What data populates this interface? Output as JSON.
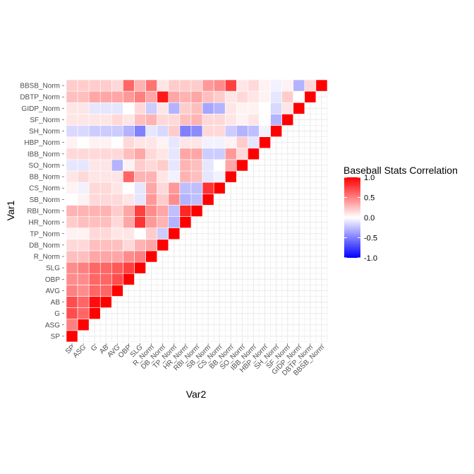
{
  "chart_data": {
    "type": "heatmap",
    "title": "",
    "xlabel": "Var2",
    "ylabel": "Var1",
    "legend_title": "Baseball Stats Correlation",
    "legend_placement": "right",
    "color_scale": {
      "low": "#0000ff",
      "mid": "#ffffff",
      "high": "#ff0000",
      "limits": [
        -1,
        1
      ],
      "breaks": [
        "-1.0",
        "-0.5",
        "0.0",
        "0.5",
        "1.0"
      ]
    },
    "grid": true,
    "lower_triangle_shown": true,
    "variables": [
      "SP",
      "ASG",
      "G",
      "AB",
      "AVG",
      "OBP",
      "SLG",
      "R_Norm",
      "DB_Norm",
      "TP_Norm",
      "HR_Norm",
      "RBI_Norm",
      "SB_Norm",
      "CS_Norm",
      "BB_Norm",
      "SO_Norm",
      "IBB_Norm",
      "HBP_Norm",
      "SH_Norm",
      "SF_Norm",
      "GIDP_Norm",
      "DBTP_Norm",
      "BBSB_Norm"
    ],
    "matrix": [
      [
        1.0
      ],
      [
        0.5,
        1.0
      ],
      [
        0.7,
        0.6,
        1.0
      ],
      [
        0.7,
        0.6,
        0.95,
        1.0
      ],
      [
        0.5,
        0.45,
        0.6,
        0.6,
        1.0
      ],
      [
        0.45,
        0.45,
        0.6,
        0.6,
        0.7,
        1.0
      ],
      [
        0.45,
        0.5,
        0.6,
        0.6,
        0.65,
        0.75,
        1.0
      ],
      [
        0.25,
        0.25,
        0.35,
        0.35,
        0.35,
        0.45,
        0.5,
        1.0
      ],
      [
        0.15,
        0.15,
        0.25,
        0.25,
        0.25,
        0.15,
        0.3,
        0.35,
        1.0
      ],
      [
        0.05,
        0.05,
        0.15,
        0.15,
        0.1,
        0.1,
        0.0,
        0.2,
        -0.2,
        1.0
      ],
      [
        0.2,
        0.25,
        0.25,
        0.25,
        0.15,
        0.35,
        0.8,
        0.4,
        0.3,
        -0.3,
        1.0
      ],
      [
        0.3,
        0.3,
        0.3,
        0.3,
        0.2,
        0.35,
        0.75,
        0.45,
        0.35,
        -0.25,
        0.85,
        1.0
      ],
      [
        0.0,
        0.05,
        0.15,
        0.15,
        0.15,
        0.1,
        -0.1,
        0.4,
        0.2,
        0.45,
        -0.3,
        -0.25,
        1.0
      ],
      [
        0.05,
        -0.05,
        0.15,
        0.15,
        0.1,
        0.0,
        -0.1,
        0.35,
        0.15,
        0.4,
        -0.25,
        -0.25,
        0.8,
        1.0
      ],
      [
        0.1,
        0.15,
        0.1,
        0.1,
        0.1,
        0.6,
        0.3,
        0.3,
        0.1,
        -0.05,
        0.3,
        0.25,
        -0.1,
        -0.05,
        1.0
      ],
      [
        -0.1,
        -0.1,
        0.1,
        0.1,
        -0.3,
        0.05,
        0.2,
        0.15,
        0.2,
        -0.1,
        0.3,
        0.25,
        -0.1,
        0.0,
        0.35,
        1.0
      ],
      [
        0.15,
        0.15,
        0.15,
        0.15,
        0.15,
        0.25,
        0.35,
        0.15,
        0.1,
        -0.1,
        0.35,
        0.35,
        -0.2,
        -0.2,
        0.4,
        0.15,
        1.0
      ],
      [
        0.05,
        0.0,
        0.05,
        0.05,
        0.0,
        0.15,
        0.1,
        0.1,
        0.05,
        -0.1,
        0.1,
        0.1,
        -0.05,
        -0.05,
        0.05,
        0.2,
        -0.1,
        1.0
      ],
      [
        -0.15,
        -0.15,
        -0.2,
        -0.2,
        -0.2,
        -0.3,
        -0.5,
        -0.1,
        -0.15,
        0.2,
        -0.5,
        -0.45,
        0.15,
        0.15,
        -0.2,
        -0.3,
        -0.25,
        -0.05,
        1.0
      ],
      [
        0.1,
        0.1,
        0.1,
        0.1,
        0.15,
        0.1,
        0.25,
        0.3,
        0.15,
        0.15,
        0.25,
        0.3,
        0.15,
        0.15,
        0.1,
        0.05,
        0.1,
        0.0,
        -0.3,
        1.0
      ],
      [
        0.1,
        0.1,
        -0.1,
        -0.1,
        -0.1,
        0.0,
        0.15,
        -0.2,
        0.1,
        -0.3,
        0.2,
        0.25,
        -0.35,
        -0.3,
        0.1,
        0.05,
        0.05,
        0.0,
        -0.15,
        0.1,
        1.0
      ],
      [
        0.25,
        0.25,
        0.35,
        0.35,
        0.35,
        0.4,
        0.5,
        0.35,
        0.9,
        0.35,
        0.3,
        0.35,
        0.25,
        0.2,
        0.1,
        0.15,
        0.1,
        0.05,
        -0.1,
        0.2,
        0.0,
        1.0
      ],
      [
        0.2,
        0.2,
        0.2,
        0.2,
        0.15,
        0.6,
        0.3,
        0.55,
        0.1,
        0.2,
        0.2,
        0.2,
        0.4,
        0.45,
        0.75,
        0.1,
        0.15,
        0.05,
        -0.05,
        0.05,
        -0.3,
        0.15,
        1.0
      ]
    ]
  }
}
